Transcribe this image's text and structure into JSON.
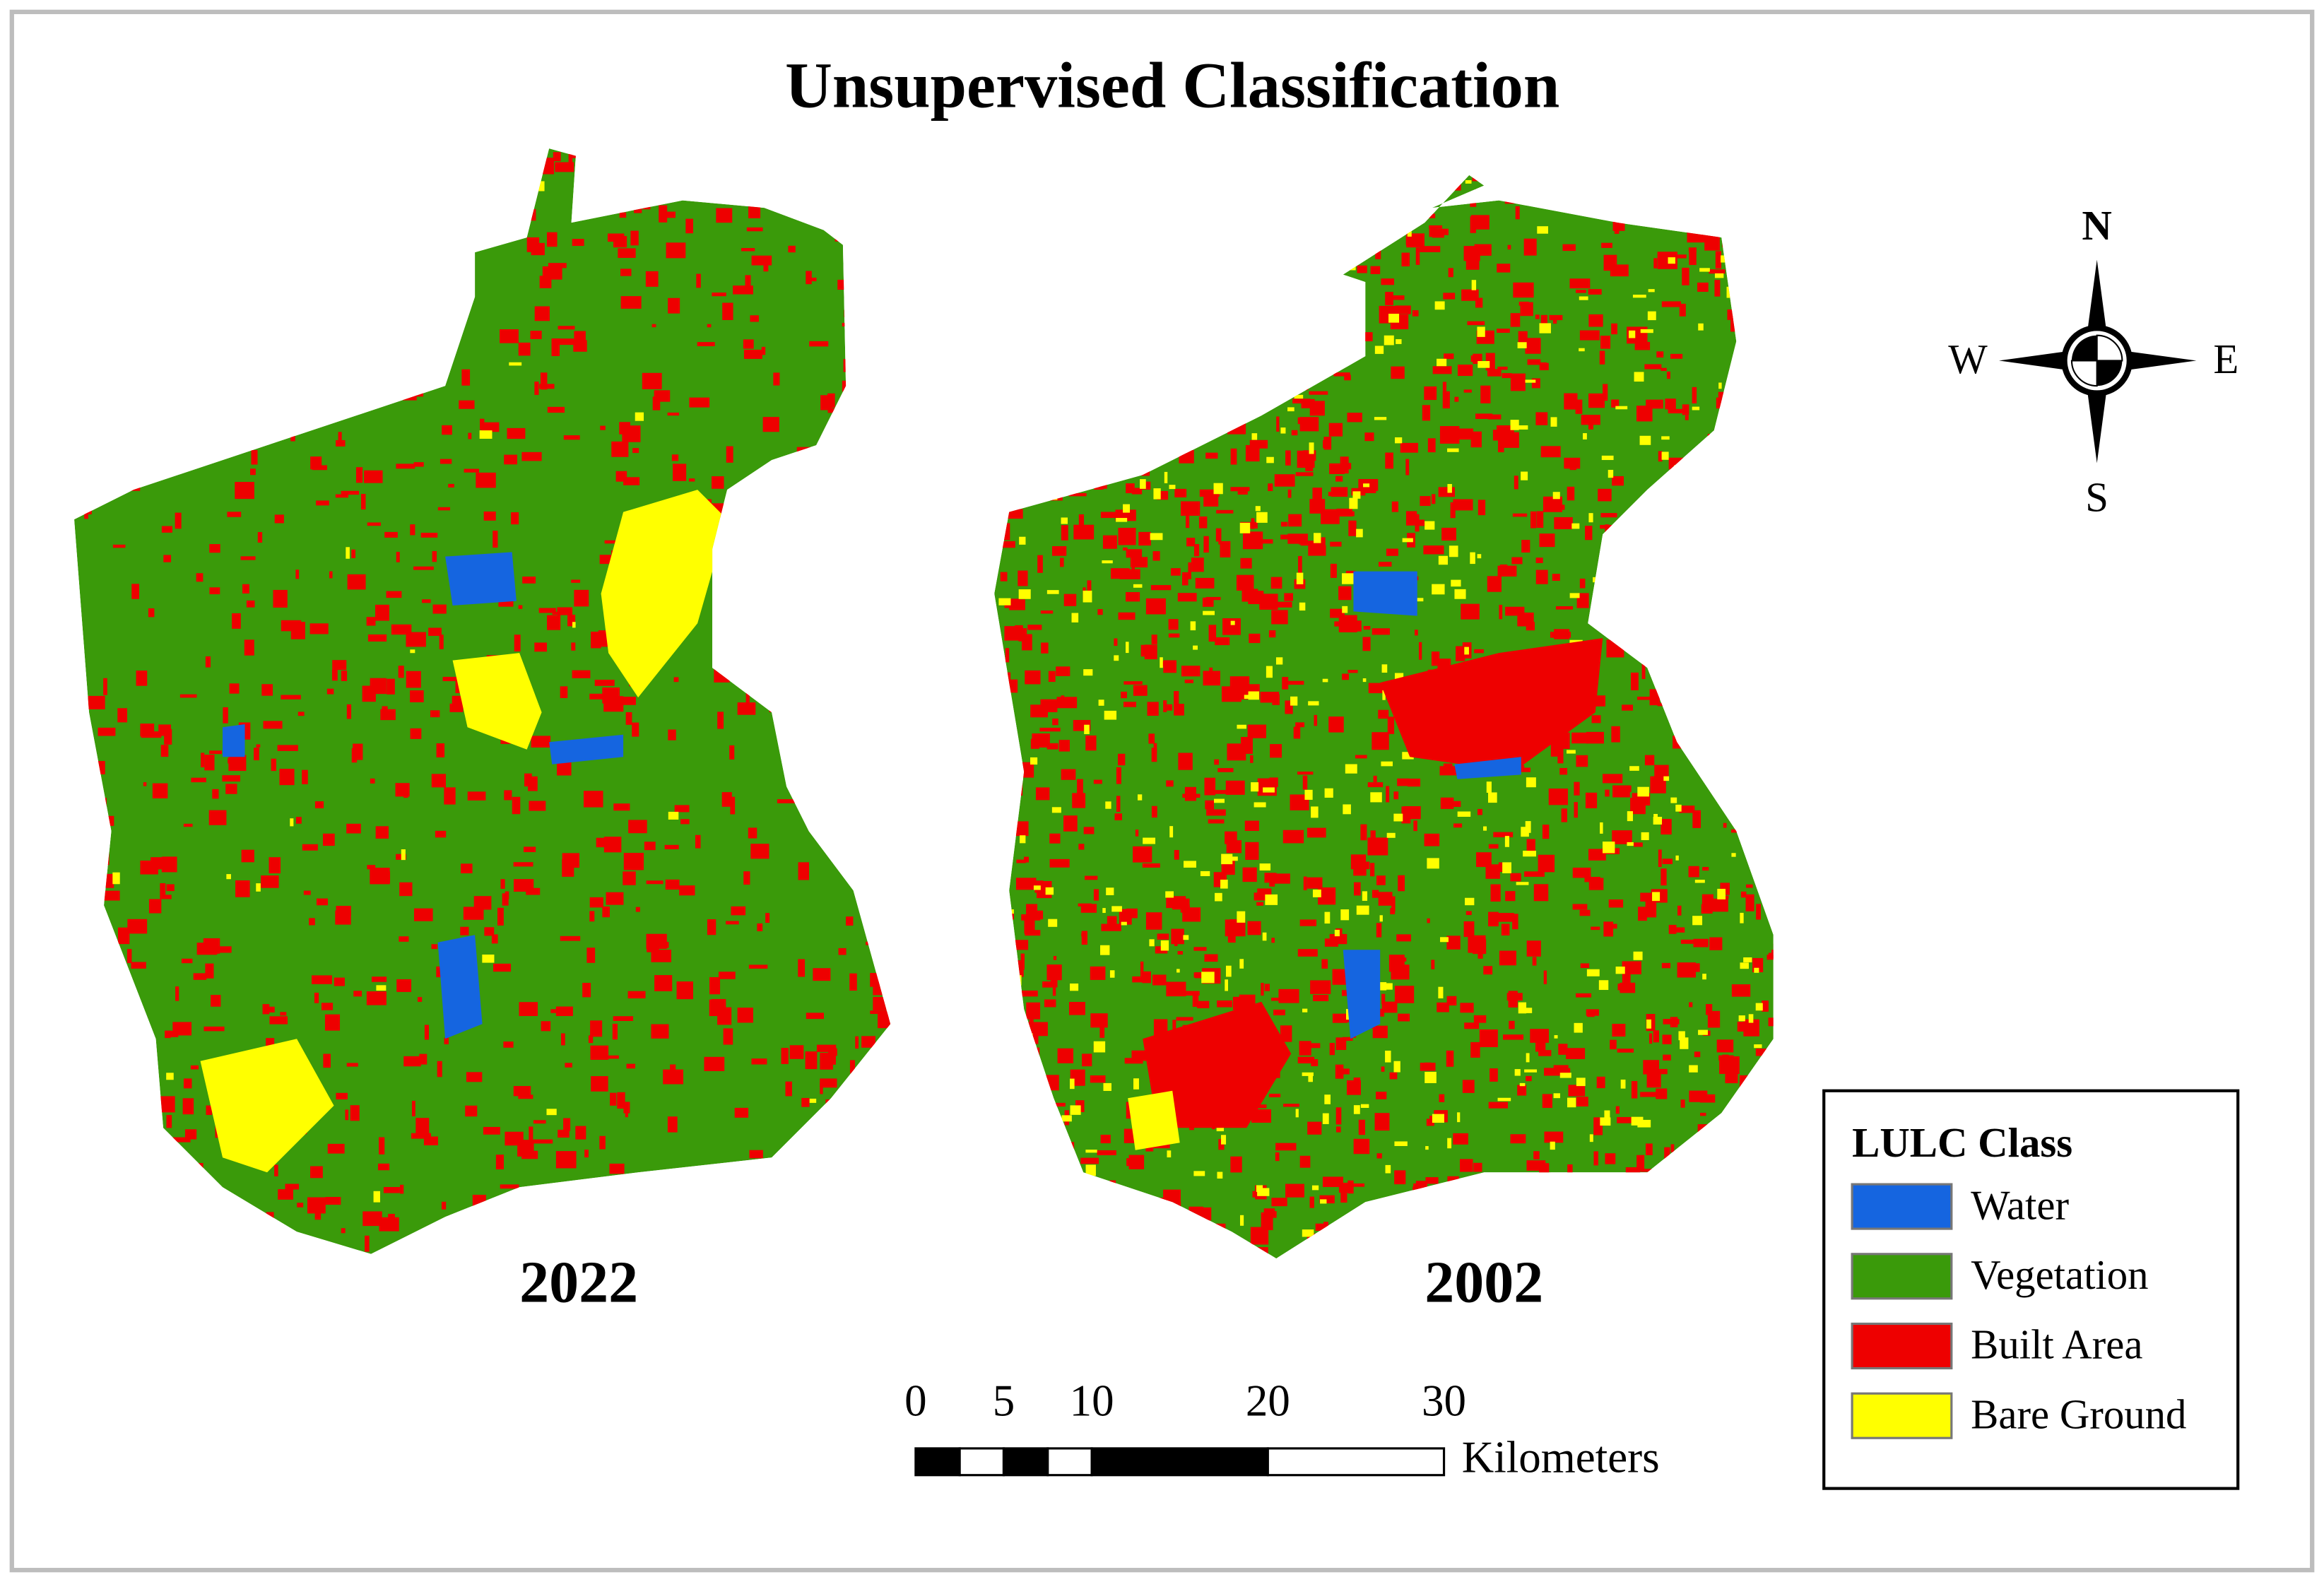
{
  "title": "Unsupervised Classification",
  "maps": [
    {
      "label": "2022"
    },
    {
      "label": "2002"
    }
  ],
  "compass": {
    "north": "N",
    "south": "S",
    "east": "E",
    "west": "W"
  },
  "scale_bar": {
    "ticks": [
      0,
      5,
      10,
      20,
      30
    ],
    "unit": "Kilometers"
  },
  "legend": {
    "title": "LULC Class",
    "items": [
      {
        "label": "Water",
        "color": "#1565e0"
      },
      {
        "label": "Vegetation",
        "color": "#3a9a0a"
      },
      {
        "label": "Built Area",
        "color": "#ee0000"
      },
      {
        "label": "Bare Ground",
        "color": "#ffff00"
      }
    ]
  }
}
